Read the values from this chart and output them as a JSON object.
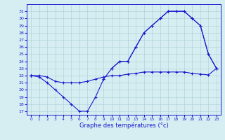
{
  "xlabel": "Graphe des températures (°c)",
  "background_color": "#d6eef2",
  "line_color": "#1a1acd",
  "grid_color": "#aaccd4",
  "hours": [
    0,
    1,
    2,
    3,
    4,
    5,
    6,
    7,
    8,
    9,
    10,
    11,
    12,
    13,
    14,
    15,
    16,
    17,
    18,
    19,
    20,
    21,
    22,
    23
  ],
  "line_min": [
    22,
    21.8,
    21,
    20,
    19,
    18,
    17,
    17,
    19,
    21.5,
    null,
    null,
    null,
    null,
    null,
    null,
    null,
    null,
    null,
    null,
    null,
    null,
    null,
    null
  ],
  "line_max": [
    22,
    null,
    null,
    null,
    null,
    null,
    null,
    null,
    null,
    null,
    23,
    24,
    24,
    26,
    28,
    29,
    30,
    31,
    31,
    31,
    30,
    29,
    25,
    23
  ],
  "line_flat": [
    22,
    22,
    21.8,
    21.2,
    21,
    21,
    21,
    21.2,
    21.5,
    21.8,
    22,
    22,
    22.2,
    22.3,
    22.5,
    22.5,
    22.5,
    22.5,
    22.5,
    22.5,
    22.3,
    22.2,
    22.1,
    23
  ],
  "line_connect": [
    22,
    null,
    null,
    null,
    null,
    null,
    null,
    null,
    null,
    21.5,
    23,
    24,
    24,
    26,
    28,
    29,
    30,
    31,
    31,
    31,
    30,
    29,
    25,
    23
  ],
  "ylim": [
    16.5,
    32
  ],
  "yticks": [
    17,
    18,
    19,
    20,
    21,
    22,
    23,
    24,
    25,
    26,
    27,
    28,
    29,
    30,
    31
  ],
  "xticks": [
    0,
    1,
    2,
    3,
    4,
    5,
    6,
    7,
    8,
    9,
    10,
    11,
    12,
    13,
    14,
    15,
    16,
    17,
    18,
    19,
    20,
    21,
    22,
    23
  ]
}
